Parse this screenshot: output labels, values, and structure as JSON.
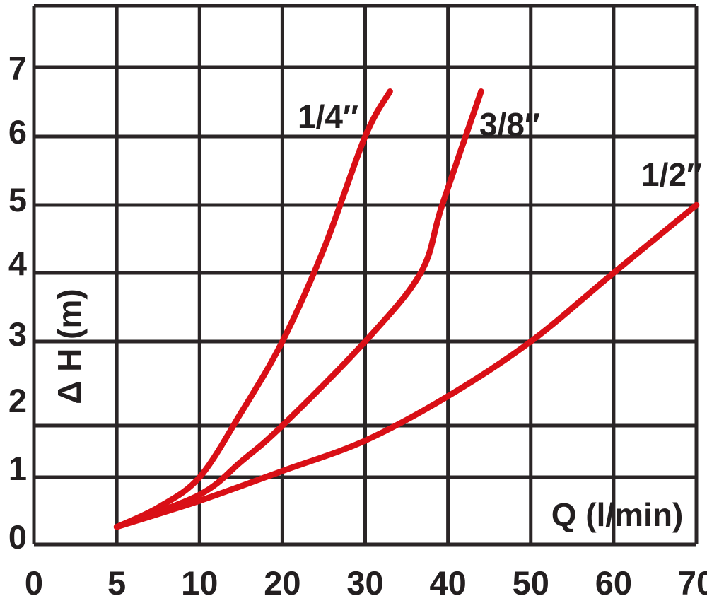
{
  "colors": {
    "background": "#ffffff",
    "grid": "#2a2526",
    "text": "#231f20",
    "curve_red": "#d90f16"
  },
  "chart_data": {
    "type": "line",
    "title": "",
    "xlabel": "Q (l/min)",
    "ylabel": "Δ H (m)",
    "x_ticks": [
      0,
      5,
      10,
      20,
      30,
      40,
      50,
      60,
      70
    ],
    "x_tick_labels": [
      "0",
      "5",
      "10",
      "20",
      "30",
      "40",
      "50",
      "60",
      "70"
    ],
    "y_ticks": [
      0,
      1,
      2,
      3,
      4,
      5,
      6,
      7
    ],
    "y_tick_labels": [
      "0",
      "1",
      "2",
      "3",
      "4",
      "5",
      "6",
      "7"
    ],
    "x_axis_scale": "piecewise-linear (ticks 0,5,10 then steps of 10, equally spaced)",
    "grid": true,
    "legend_position": "labels-on-curves",
    "series": [
      {
        "id": "quarter-inch",
        "label": "1/4″",
        "color": "#d90f16",
        "points": [
          [
            5,
            0.26
          ],
          [
            7.5,
            0.55
          ],
          [
            10,
            1.0
          ],
          [
            15,
            2.15
          ],
          [
            20,
            3.0
          ],
          [
            25,
            4.35
          ],
          [
            30,
            6.0
          ],
          [
            33,
            6.65
          ]
        ]
      },
      {
        "id": "three-eighth-inch",
        "label": "3/8″",
        "color": "#d90f16",
        "points": [
          [
            5,
            0.26
          ],
          [
            10,
            0.74
          ],
          [
            15,
            1.3
          ],
          [
            20,
            2.0
          ],
          [
            30,
            3.0
          ],
          [
            36.7,
            4.0
          ],
          [
            39.3,
            5.0
          ],
          [
            44,
            6.65
          ]
        ]
      },
      {
        "id": "half-inch",
        "label": "1/2″",
        "color": "#d90f16",
        "points": [
          [
            5,
            0.26
          ],
          [
            10,
            0.65
          ],
          [
            20,
            1.12
          ],
          [
            30,
            1.71
          ],
          [
            40,
            2.35
          ],
          [
            50,
            3.0
          ],
          [
            60,
            4.0
          ],
          [
            70,
            5.0
          ]
        ]
      }
    ]
  }
}
